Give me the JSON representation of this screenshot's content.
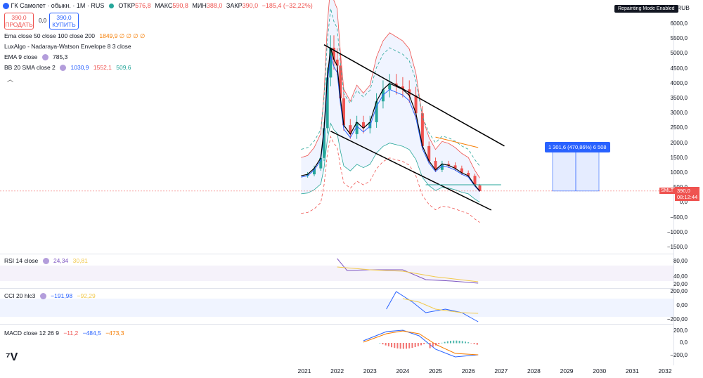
{
  "header": {
    "symbol": "ГК Самолет · обыкн. · 1М · RUS",
    "open_label": "ОТКР",
    "open": "576,8",
    "high_label": "МАКС",
    "high": "590,8",
    "low_label": "МИН",
    "low": "388,0",
    "close_label": "ЗАКР",
    "close": "390,0",
    "change": "−185,4 (−32,22%)",
    "sell_price": "390,0",
    "sell_label": "ПРОДАТЬ",
    "spread": "0,0",
    "buy_price": "390,0",
    "buy_label": "КУПИТЬ",
    "repaint_badge": "Repainting Mode Enabled",
    "currency": "RUB"
  },
  "legends": {
    "ema": {
      "name": "Ema close 50 close 100 close 200",
      "values": "1849,9  ∅  ∅  ∅  ∅"
    },
    "luxalgo": {
      "name": "LuxAlgo - Nadaraya-Watson Envelope 8 3 close"
    },
    "ema9": {
      "name": "EMA 9 close",
      "value": "785,3"
    },
    "bb": {
      "name": "BB 20 SMA close 2",
      "v1": "1030,9",
      "v2": "1552,1",
      "v3": "509,6"
    }
  },
  "rsi": {
    "name": "RSI 14 close",
    "v1": "24,34",
    "v2": "30,81",
    "ticks": [
      "80,00",
      "40,00",
      "20,00"
    ]
  },
  "cci": {
    "name": "CCI 20 hlc3",
    "v1": "−191,98",
    "v2": "−92,29",
    "ticks": [
      "200,00",
      "0,00",
      "−200,00"
    ]
  },
  "macd": {
    "name": "MACD close 12 26 9",
    "v1": "−11,2",
    "v2": "−484,5",
    "v3": "−473,3",
    "ticks": [
      "200,0",
      "0,0",
      "−200,0"
    ]
  },
  "price_tag": {
    "symbol": "SMLT",
    "price": "390,0",
    "timer": "08:12:44"
  },
  "measure_label": "1 301,6 (470,86%) 6 508",
  "colors": {
    "up": "#26a69a",
    "down": "#ef5350",
    "accent": "#2962ff",
    "ema50": "#f57c00",
    "bb_upper": "#ef5350",
    "bb_lower": "#26a69a",
    "bb_basis": "#2962ff",
    "envelope": "#26a69a",
    "ema9": "#000000"
  },
  "chart_data": {
    "type": "candlestick",
    "title": "ГК Самолет · обыкн. · 1М · RUS",
    "y_ticks": [
      "6000,0",
      "5500,0",
      "5000,0",
      "4500,0",
      "4000,0",
      "3500,0",
      "3000,0",
      "2500,0",
      "2000,0",
      "1500,0",
      "1000,0",
      "500,0",
      "0,0",
      "−500,0",
      "−1000,0",
      "−1500,0"
    ],
    "ylim": [
      -1500,
      6000
    ],
    "x_ticks": [
      "2021",
      "2022",
      "2023",
      "2024",
      "2025",
      "2026",
      "2027",
      "2028",
      "2029",
      "2030",
      "2031",
      "2032"
    ],
    "xlim": [
      2020.8,
      2032.2
    ],
    "price_series": [
      {
        "t": 2020.9,
        "c": 900
      },
      {
        "t": 2021.1,
        "c": 950
      },
      {
        "t": 2021.3,
        "c": 1150
      },
      {
        "t": 2021.5,
        "c": 1500
      },
      {
        "t": 2021.6,
        "c": 2500
      },
      {
        "t": 2021.7,
        "c": 4200
      },
      {
        "t": 2021.8,
        "c": 5200
      },
      {
        "t": 2021.9,
        "c": 4800
      },
      {
        "t": 2022.0,
        "c": 4600
      },
      {
        "t": 2022.1,
        "c": 3500
      },
      {
        "t": 2022.2,
        "c": 2600
      },
      {
        "t": 2022.4,
        "c": 2300
      },
      {
        "t": 2022.6,
        "c": 2700
      },
      {
        "t": 2022.8,
        "c": 2500
      },
      {
        "t": 2023.0,
        "c": 2700
      },
      {
        "t": 2023.2,
        "c": 3400
      },
      {
        "t": 2023.4,
        "c": 3800
      },
      {
        "t": 2023.6,
        "c": 4000
      },
      {
        "t": 2023.8,
        "c": 3900
      },
      {
        "t": 2024.0,
        "c": 3800
      },
      {
        "t": 2024.2,
        "c": 3600
      },
      {
        "t": 2024.4,
        "c": 3000
      },
      {
        "t": 2024.6,
        "c": 1900
      },
      {
        "t": 2024.8,
        "c": 1400
      },
      {
        "t": 2025.0,
        "c": 1100
      },
      {
        "t": 2025.2,
        "c": 1300
      },
      {
        "t": 2025.4,
        "c": 1250
      },
      {
        "t": 2025.6,
        "c": 1150
      },
      {
        "t": 2025.8,
        "c": 1000
      },
      {
        "t": 2026.0,
        "c": 900
      },
      {
        "t": 2026.2,
        "c": 580
      },
      {
        "t": 2026.35,
        "c": 390
      }
    ]
  }
}
